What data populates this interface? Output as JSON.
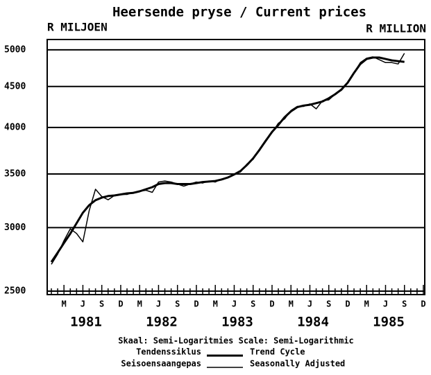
{
  "chart_data": {
    "type": "line",
    "title": "Heersende pryse / Current prices",
    "y_label_left": "R MILJOEN",
    "y_label_right": "R MILLION",
    "log_scale": true,
    "grid": true,
    "ylim": [
      2475,
      5150
    ],
    "yticks": [
      2500,
      3000,
      3500,
      4000,
      4500,
      5000
    ],
    "categories": [
      null,
      null,
      "M",
      null,
      null,
      "J",
      null,
      null,
      "S",
      null,
      null,
      "D",
      null,
      null,
      "M",
      null,
      null,
      "J",
      null,
      null,
      "S",
      null,
      null,
      "D",
      null,
      null,
      "M",
      null,
      null,
      "J",
      null,
      null,
      "S",
      null,
      null,
      "D",
      null,
      null,
      "M",
      null,
      null,
      "J",
      null,
      null,
      "S",
      null,
      null,
      "D",
      null,
      null,
      "M",
      null,
      null,
      "J",
      null,
      null,
      "S",
      null,
      null,
      "D"
    ],
    "years": [
      "1981",
      "1982",
      "1983",
      "1984",
      "1985"
    ],
    "scale_note": "Skaal: Semi-Logaritmies Scale: Semi-Logarithmic",
    "series": [
      {
        "name": "Tendenssiklus",
        "name_en": "Trend Cycle",
        "color": "#000000",
        "values": [
          2718,
          2792,
          2870,
          2949,
          3038,
          3131,
          3200,
          3246,
          3270,
          3285,
          3290,
          3300,
          3310,
          3315,
          3330,
          3350,
          3370,
          3400,
          3410,
          3410,
          3400,
          3400,
          3400,
          3410,
          3420,
          3425,
          3430,
          3445,
          3465,
          3495,
          3530,
          3590,
          3660,
          3750,
          3850,
          3950,
          4030,
          4120,
          4190,
          4240,
          4260,
          4270,
          4290,
          4310,
          4350,
          4400,
          4460,
          4550,
          4680,
          4800,
          4870,
          4890,
          4890,
          4870,
          4850,
          4840,
          4830,
          null,
          null,
          null
        ]
      },
      {
        "name": "Seisoensaangepas",
        "name_en": "Seasonally Adjusted",
        "color": "#000000",
        "values": [
          2700,
          2780,
          2890,
          2990,
          2950,
          2880,
          3150,
          3350,
          3280,
          3250,
          3290,
          3300,
          3300,
          3320,
          3330,
          3340,
          3320,
          3420,
          3430,
          3420,
          3400,
          3380,
          3400,
          3420,
          3410,
          3430,
          3420,
          3450,
          3460,
          3500,
          3520,
          3600,
          3650,
          3760,
          3860,
          3940,
          4050,
          4100,
          4200,
          4250,
          4250,
          4280,
          4220,
          4320,
          4330,
          4400,
          4450,
          4550,
          4680,
          4820,
          4880,
          4900,
          4860,
          4820,
          4820,
          4800,
          4950,
          null,
          null,
          null
        ]
      }
    ]
  }
}
